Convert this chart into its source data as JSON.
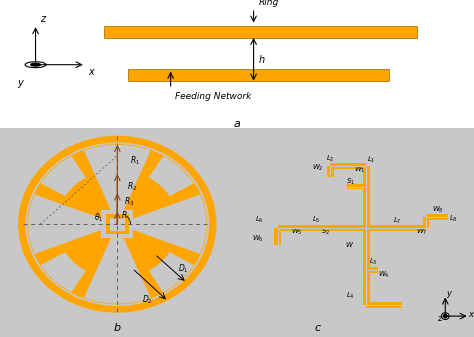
{
  "orange": "#FFA500",
  "orange_edge": "#CC8800",
  "gray_bg": "#C8C8C8",
  "white": "#FFFFFF",
  "black": "#000000",
  "dark_orange": "#B8860B"
}
